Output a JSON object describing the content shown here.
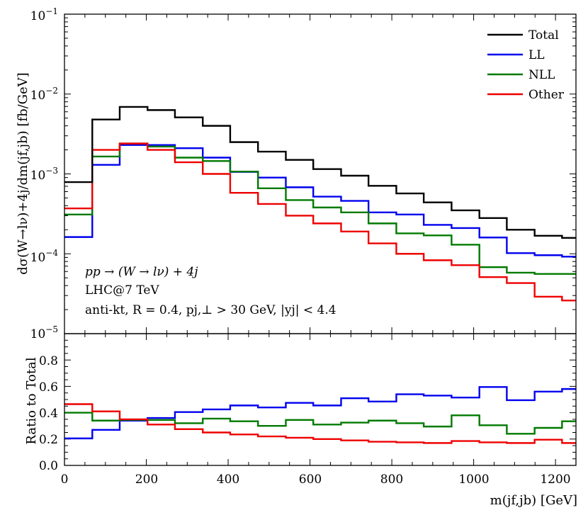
{
  "chart_data": [
    {
      "type": "line",
      "step": true,
      "title": "",
      "xlabel": "m_{j_f,j_b} [GeV]",
      "ylabel": "dσ_{(W→lν)+4j}/dm_{j_f,j_b} [fb/GeV]",
      "yscale": "log",
      "xlim": [
        0,
        1250
      ],
      "ylim": [
        1e-05,
        0.1
      ],
      "y_tick_labels": [
        "10^{-5}",
        "10^{-4}",
        "10^{-3}",
        "10^{-2}",
        "10^{-1}"
      ],
      "legend": [
        "Total",
        "LL",
        "NLL",
        "Other"
      ],
      "legend_position": "top-right",
      "annotations": [
        "pp → (W → lν) + 4j",
        "LHC@7 TeV",
        "anti-kt, R = 0.4, p_{j,⊥} > 30 GeV, |y_j| < 4.4"
      ],
      "bin_edges": [
        0,
        68,
        135,
        203,
        270,
        338,
        405,
        473,
        541,
        608,
        676,
        743,
        811,
        878,
        946,
        1014,
        1081,
        1149,
        1216,
        1250
      ],
      "series": [
        {
          "name": "Total",
          "values": [
            0.00079,
            0.0048,
            0.0069,
            0.0063,
            0.0051,
            0.004,
            0.0025,
            0.0019,
            0.0015,
            0.00115,
            0.00095,
            0.00071,
            0.00057,
            0.00044,
            0.00035,
            0.00028,
            0.0002,
            0.000168,
            0.000158
          ]
        },
        {
          "name": "LL",
          "values": [
            0.000162,
            0.0013,
            0.0023,
            0.0023,
            0.0021,
            0.0016,
            0.00106,
            0.0009,
            0.00068,
            0.00052,
            0.00046,
            0.00033,
            0.00031,
            0.00023,
            0.00021,
            0.00016,
            0.000102,
            9.6e-05,
            9.2e-05
          ]
        },
        {
          "name": "NLL",
          "values": [
            0.00031,
            0.00165,
            0.0024,
            0.0022,
            0.0016,
            0.00145,
            0.00107,
            0.00066,
            0.00047,
            0.00038,
            0.00033,
            0.00024,
            0.00018,
            0.00017,
            0.00013,
            6.8e-05,
            5.8e-05,
            5.6e-05,
            5.6e-05
          ]
        },
        {
          "name": "Other",
          "values": [
            0.00037,
            0.002,
            0.0024,
            0.002,
            0.0014,
            0.001,
            0.00058,
            0.00042,
            0.0003,
            0.00024,
            0.00019,
            0.000135,
            0.0001,
            8.3e-05,
            7.2e-05,
            5.1e-05,
            4.3e-05,
            2.9e-05,
            2.6e-05
          ]
        }
      ]
    },
    {
      "type": "line",
      "step": true,
      "title": "",
      "xlabel": "m_{j_f,j_b} [GeV]",
      "ylabel": "Ratio to Total",
      "xlim": [
        0,
        1250
      ],
      "ylim": [
        0,
        1.0
      ],
      "x_ticks": [
        0,
        200,
        400,
        600,
        800,
        1000,
        1200
      ],
      "y_ticks": [
        0.0,
        0.2,
        0.4,
        0.6,
        0.8
      ],
      "x_tick_labels": [
        "0",
        "200",
        "400",
        "600",
        "800",
        "1000",
        "1200"
      ],
      "y_tick_labels": [
        "0.0",
        "0.2",
        "0.4",
        "0.6",
        "0.8"
      ],
      "bin_edges": [
        0,
        68,
        135,
        203,
        270,
        338,
        405,
        473,
        541,
        608,
        676,
        743,
        811,
        878,
        946,
        1014,
        1081,
        1149,
        1216,
        1250
      ],
      "series": [
        {
          "name": "LL",
          "values": [
            0.205,
            0.27,
            0.34,
            0.36,
            0.405,
            0.425,
            0.455,
            0.44,
            0.475,
            0.455,
            0.51,
            0.485,
            0.54,
            0.53,
            0.515,
            0.595,
            0.495,
            0.56,
            0.58
          ]
        },
        {
          "name": "NLL",
          "values": [
            0.4,
            0.34,
            0.345,
            0.345,
            0.32,
            0.355,
            0.335,
            0.3,
            0.345,
            0.31,
            0.325,
            0.34,
            0.32,
            0.295,
            0.38,
            0.305,
            0.24,
            0.285,
            0.335
          ]
        },
        {
          "name": "Other",
          "values": [
            0.465,
            0.41,
            0.35,
            0.31,
            0.275,
            0.25,
            0.235,
            0.22,
            0.21,
            0.2,
            0.19,
            0.18,
            0.175,
            0.17,
            0.185,
            0.175,
            0.17,
            0.195,
            0.17
          ]
        }
      ]
    }
  ],
  "colors": {
    "Total": "#000000",
    "LL": "#0000ee",
    "NLL": "#007a00",
    "Other": "#ee0000"
  },
  "labels": {
    "top_ylabel": "dσ(W→lν)+4j/dm(jf,jb) [fb/GeV]",
    "bottom_ylabel": "Ratio to Total",
    "xlabel": "m(jf,jb) [GeV]",
    "anno_1": "pp → (W → lν) + 4j",
    "anno_2": "LHC@7 TeV",
    "anno_3": "anti-kt, R = 0.4, pj,⊥ > 30 GeV, |yj| < 4.4",
    "legend_total": "Total",
    "legend_ll": "LL",
    "legend_nll": "NLL",
    "legend_other": "Other",
    "top_ytick_1": "10",
    "top_ytick_1_exp": "−5",
    "top_ytick_2": "10",
    "top_ytick_2_exp": "−4",
    "top_ytick_3": "10",
    "top_ytick_3_exp": "−3",
    "top_ytick_4": "10",
    "top_ytick_4_exp": "−2",
    "top_ytick_5": "10",
    "top_ytick_5_exp": "−1",
    "xtick_1": "0",
    "xtick_2": "200",
    "xtick_3": "400",
    "xtick_4": "600",
    "xtick_5": "800",
    "xtick_6": "1000",
    "xtick_7": "1200",
    "bottom_ytick_1": "0.0",
    "bottom_ytick_2": "0.2",
    "bottom_ytick_3": "0.4",
    "bottom_ytick_4": "0.6",
    "bottom_ytick_5": "0.8"
  }
}
